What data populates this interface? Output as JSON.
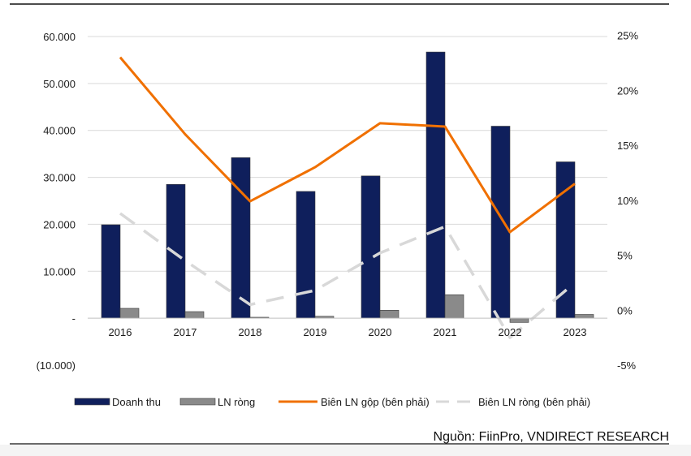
{
  "chart_data": {
    "type": "bar",
    "title": "",
    "categories": [
      "2016",
      "2017",
      "2018",
      "2019",
      "2020",
      "2021",
      "2022",
      "2023"
    ],
    "left_axis": {
      "ylim": [
        -10000,
        60000
      ],
      "ticks": [
        -10000,
        0,
        10000,
        20000,
        30000,
        40000,
        50000,
        60000
      ],
      "tick_labels": [
        "(10.000)",
        "-",
        "10.000",
        "20.000",
        "30.000",
        "40.000",
        "50.000",
        "60.000"
      ]
    },
    "right_axis": {
      "ylim": [
        -5,
        25
      ],
      "ticks": [
        -5,
        0,
        5,
        10,
        15,
        20,
        25
      ],
      "tick_labels": [
        "-5%",
        "0%",
        "5%",
        "10%",
        "15%",
        "20%",
        "25%"
      ]
    },
    "series": [
      {
        "name": "Doanh thu",
        "type": "bar",
        "axis": "left",
        "color": "#0f1f5c",
        "values": [
          19900,
          28500,
          34200,
          27000,
          30300,
          56700,
          40900,
          33300
        ]
      },
      {
        "name": "LN ròng",
        "type": "bar",
        "axis": "left",
        "color": "#8a8a8a",
        "values": [
          2100,
          1400,
          200,
          400,
          1700,
          5000,
          -900,
          800
        ]
      },
      {
        "name": "Biên LN gộp (bên phải)",
        "type": "line",
        "axis": "right",
        "color": "#f07000",
        "dashed": false,
        "values": [
          23.0,
          16.0,
          9.9,
          13.0,
          17.0,
          16.7,
          7.1,
          11.5
        ]
      },
      {
        "name": "Biên LN ròng (bên phải)",
        "type": "line",
        "axis": "right",
        "color": "#d8d8d8",
        "dashed": true,
        "values": [
          8.8,
          4.5,
          0.5,
          1.8,
          5.2,
          7.6,
          -2.5,
          2.5
        ]
      }
    ],
    "legend_position": "bottom",
    "grid": true
  },
  "source": "Nguồn: FiinPro, VNDIRECT RESEARCH"
}
